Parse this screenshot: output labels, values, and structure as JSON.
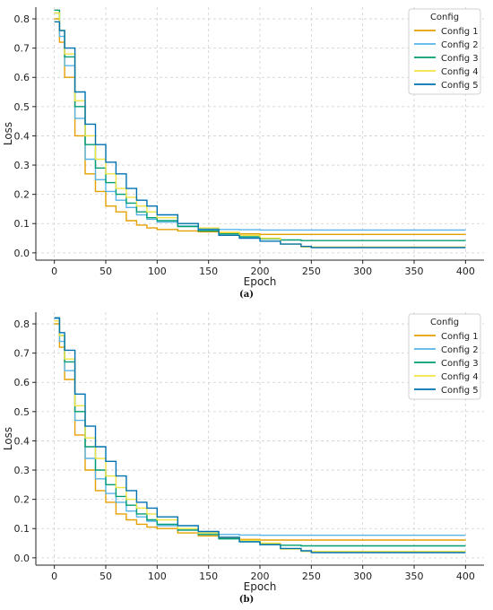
{
  "chart_data": [
    {
      "type": "line",
      "panel": "(a)",
      "xlabel": "Epoch",
      "ylabel": "Loss",
      "xlim": [
        -18,
        418
      ],
      "ylim": [
        -0.025,
        0.84
      ],
      "xticks": [
        0,
        50,
        100,
        150,
        200,
        250,
        300,
        350,
        400
      ],
      "yticks": [
        0.0,
        0.1,
        0.2,
        0.3,
        0.4,
        0.5,
        0.6,
        0.7,
        0.8
      ],
      "grid": true,
      "legend": {
        "title": "Config",
        "placement": "top-right"
      },
      "series": [
        {
          "name": "Config 1",
          "color": "#E69F00",
          "values": [
            [
              0,
              0.8
            ],
            [
              5,
              0.72
            ],
            [
              10,
              0.6
            ],
            [
              20,
              0.4
            ],
            [
              30,
              0.27
            ],
            [
              40,
              0.21
            ],
            [
              50,
              0.16
            ],
            [
              60,
              0.14
            ],
            [
              70,
              0.11
            ],
            [
              80,
              0.095
            ],
            [
              90,
              0.085
            ],
            [
              100,
              0.08
            ],
            [
              120,
              0.075
            ],
            [
              140,
              0.072
            ],
            [
              160,
              0.068
            ],
            [
              180,
              0.065
            ],
            [
              200,
              0.063
            ],
            [
              400,
              0.063
            ]
          ]
        },
        {
          "name": "Config 2",
          "color": "#56B4E9",
          "values": [
            [
              0,
              0.82
            ],
            [
              5,
              0.74
            ],
            [
              10,
              0.64
            ],
            [
              20,
              0.46
            ],
            [
              30,
              0.32
            ],
            [
              40,
              0.25
            ],
            [
              50,
              0.21
            ],
            [
              60,
              0.18
            ],
            [
              70,
              0.155
            ],
            [
              80,
              0.13
            ],
            [
              90,
              0.115
            ],
            [
              100,
              0.105
            ],
            [
              120,
              0.092
            ],
            [
              140,
              0.084
            ],
            [
              160,
              0.08
            ],
            [
              180,
              0.079
            ],
            [
              200,
              0.078
            ],
            [
              400,
              0.078
            ]
          ]
        },
        {
          "name": "Config 3",
          "color": "#009E73",
          "values": [
            [
              0,
              0.83
            ],
            [
              5,
              0.76
            ],
            [
              10,
              0.67
            ],
            [
              20,
              0.5
            ],
            [
              30,
              0.37
            ],
            [
              40,
              0.29
            ],
            [
              50,
              0.24
            ],
            [
              60,
              0.2
            ],
            [
              70,
              0.17
            ],
            [
              80,
              0.14
            ],
            [
              90,
              0.12
            ],
            [
              100,
              0.11
            ],
            [
              120,
              0.09
            ],
            [
              140,
              0.075
            ],
            [
              160,
              0.065
            ],
            [
              180,
              0.055
            ],
            [
              200,
              0.048
            ],
            [
              220,
              0.044
            ],
            [
              240,
              0.042
            ],
            [
              400,
              0.042
            ]
          ]
        },
        {
          "name": "Config 4",
          "color": "#F0E442",
          "values": [
            [
              0,
              0.82
            ],
            [
              5,
              0.76
            ],
            [
              10,
              0.68
            ],
            [
              20,
              0.52
            ],
            [
              30,
              0.4
            ],
            [
              40,
              0.32
            ],
            [
              50,
              0.27
            ],
            [
              60,
              0.22
            ],
            [
              70,
              0.19
            ],
            [
              80,
              0.16
            ],
            [
              90,
              0.14
            ],
            [
              100,
              0.12
            ],
            [
              120,
              0.1
            ],
            [
              140,
              0.085
            ],
            [
              160,
              0.07
            ],
            [
              180,
              0.06
            ],
            [
              200,
              0.05
            ],
            [
              220,
              0.03
            ],
            [
              240,
              0.02
            ],
            [
              400,
              0.02
            ]
          ]
        },
        {
          "name": "Config 5",
          "color": "#0072B2",
          "values": [
            [
              0,
              0.79
            ],
            [
              5,
              0.76
            ],
            [
              10,
              0.7
            ],
            [
              20,
              0.55
            ],
            [
              30,
              0.44
            ],
            [
              40,
              0.37
            ],
            [
              50,
              0.31
            ],
            [
              60,
              0.27
            ],
            [
              70,
              0.22
            ],
            [
              80,
              0.18
            ],
            [
              90,
              0.16
            ],
            [
              100,
              0.13
            ],
            [
              120,
              0.1
            ],
            [
              140,
              0.08
            ],
            [
              160,
              0.06
            ],
            [
              180,
              0.05
            ],
            [
              200,
              0.04
            ],
            [
              220,
              0.03
            ],
            [
              240,
              0.022
            ],
            [
              250,
              0.018
            ],
            [
              400,
              0.018
            ]
          ]
        }
      ]
    },
    {
      "type": "line",
      "panel": "(b)",
      "xlabel": "Epoch",
      "ylabel": "Loss",
      "xlim": [
        -18,
        418
      ],
      "ylim": [
        -0.025,
        0.84
      ],
      "xticks": [
        0,
        50,
        100,
        150,
        200,
        250,
        300,
        350,
        400
      ],
      "yticks": [
        0.0,
        0.1,
        0.2,
        0.3,
        0.4,
        0.5,
        0.6,
        0.7,
        0.8
      ],
      "grid": true,
      "legend": {
        "title": "Config",
        "placement": "top-right"
      },
      "series": [
        {
          "name": "Config 1",
          "color": "#E69F00",
          "values": [
            [
              0,
              0.8
            ],
            [
              5,
              0.72
            ],
            [
              10,
              0.61
            ],
            [
              20,
              0.42
            ],
            [
              30,
              0.3
            ],
            [
              40,
              0.23
            ],
            [
              50,
              0.19
            ],
            [
              60,
              0.15
            ],
            [
              70,
              0.13
            ],
            [
              80,
              0.115
            ],
            [
              90,
              0.105
            ],
            [
              100,
              0.1
            ],
            [
              120,
              0.085
            ],
            [
              140,
              0.075
            ],
            [
              160,
              0.068
            ],
            [
              180,
              0.063
            ],
            [
              200,
              0.061
            ],
            [
              400,
              0.061
            ]
          ]
        },
        {
          "name": "Config 2",
          "color": "#56B4E9",
          "values": [
            [
              0,
              0.82
            ],
            [
              5,
              0.74
            ],
            [
              10,
              0.64
            ],
            [
              20,
              0.47
            ],
            [
              30,
              0.34
            ],
            [
              40,
              0.27
            ],
            [
              50,
              0.22
            ],
            [
              60,
              0.19
            ],
            [
              70,
              0.16
            ],
            [
              80,
              0.14
            ],
            [
              90,
              0.125
            ],
            [
              100,
              0.11
            ],
            [
              120,
              0.095
            ],
            [
              140,
              0.085
            ],
            [
              160,
              0.08
            ],
            [
              180,
              0.078
            ],
            [
              200,
              0.077
            ],
            [
              400,
              0.077
            ]
          ]
        },
        {
          "name": "Config 3",
          "color": "#009E73",
          "values": [
            [
              0,
              0.82
            ],
            [
              5,
              0.76
            ],
            [
              10,
              0.67
            ],
            [
              20,
              0.5
            ],
            [
              30,
              0.38
            ],
            [
              40,
              0.3
            ],
            [
              50,
              0.25
            ],
            [
              60,
              0.21
            ],
            [
              70,
              0.18
            ],
            [
              80,
              0.15
            ],
            [
              90,
              0.13
            ],
            [
              100,
              0.115
            ],
            [
              120,
              0.095
            ],
            [
              140,
              0.08
            ],
            [
              160,
              0.065
            ],
            [
              180,
              0.055
            ],
            [
              200,
              0.048
            ],
            [
              220,
              0.043
            ],
            [
              240,
              0.041
            ],
            [
              400,
              0.041
            ]
          ]
        },
        {
          "name": "Config 4",
          "color": "#F0E442",
          "values": [
            [
              0,
              0.81
            ],
            [
              5,
              0.76
            ],
            [
              10,
              0.68
            ],
            [
              20,
              0.52
            ],
            [
              30,
              0.41
            ],
            [
              40,
              0.34
            ],
            [
              50,
              0.28
            ],
            [
              60,
              0.24
            ],
            [
              70,
              0.2
            ],
            [
              80,
              0.17
            ],
            [
              90,
              0.15
            ],
            [
              100,
              0.13
            ],
            [
              120,
              0.1
            ],
            [
              140,
              0.085
            ],
            [
              160,
              0.07
            ],
            [
              180,
              0.06
            ],
            [
              200,
              0.05
            ],
            [
              220,
              0.03
            ],
            [
              240,
              0.022
            ],
            [
              400,
              0.022
            ]
          ]
        },
        {
          "name": "Config 5",
          "color": "#0072B2",
          "values": [
            [
              0,
              0.82
            ],
            [
              5,
              0.77
            ],
            [
              10,
              0.71
            ],
            [
              20,
              0.56
            ],
            [
              30,
              0.45
            ],
            [
              40,
              0.38
            ],
            [
              50,
              0.33
            ],
            [
              60,
              0.28
            ],
            [
              70,
              0.23
            ],
            [
              80,
              0.19
            ],
            [
              90,
              0.17
            ],
            [
              100,
              0.14
            ],
            [
              120,
              0.11
            ],
            [
              140,
              0.09
            ],
            [
              160,
              0.07
            ],
            [
              180,
              0.055
            ],
            [
              200,
              0.045
            ],
            [
              220,
              0.032
            ],
            [
              240,
              0.024
            ],
            [
              250,
              0.018
            ],
            [
              400,
              0.018
            ]
          ]
        }
      ]
    }
  ]
}
